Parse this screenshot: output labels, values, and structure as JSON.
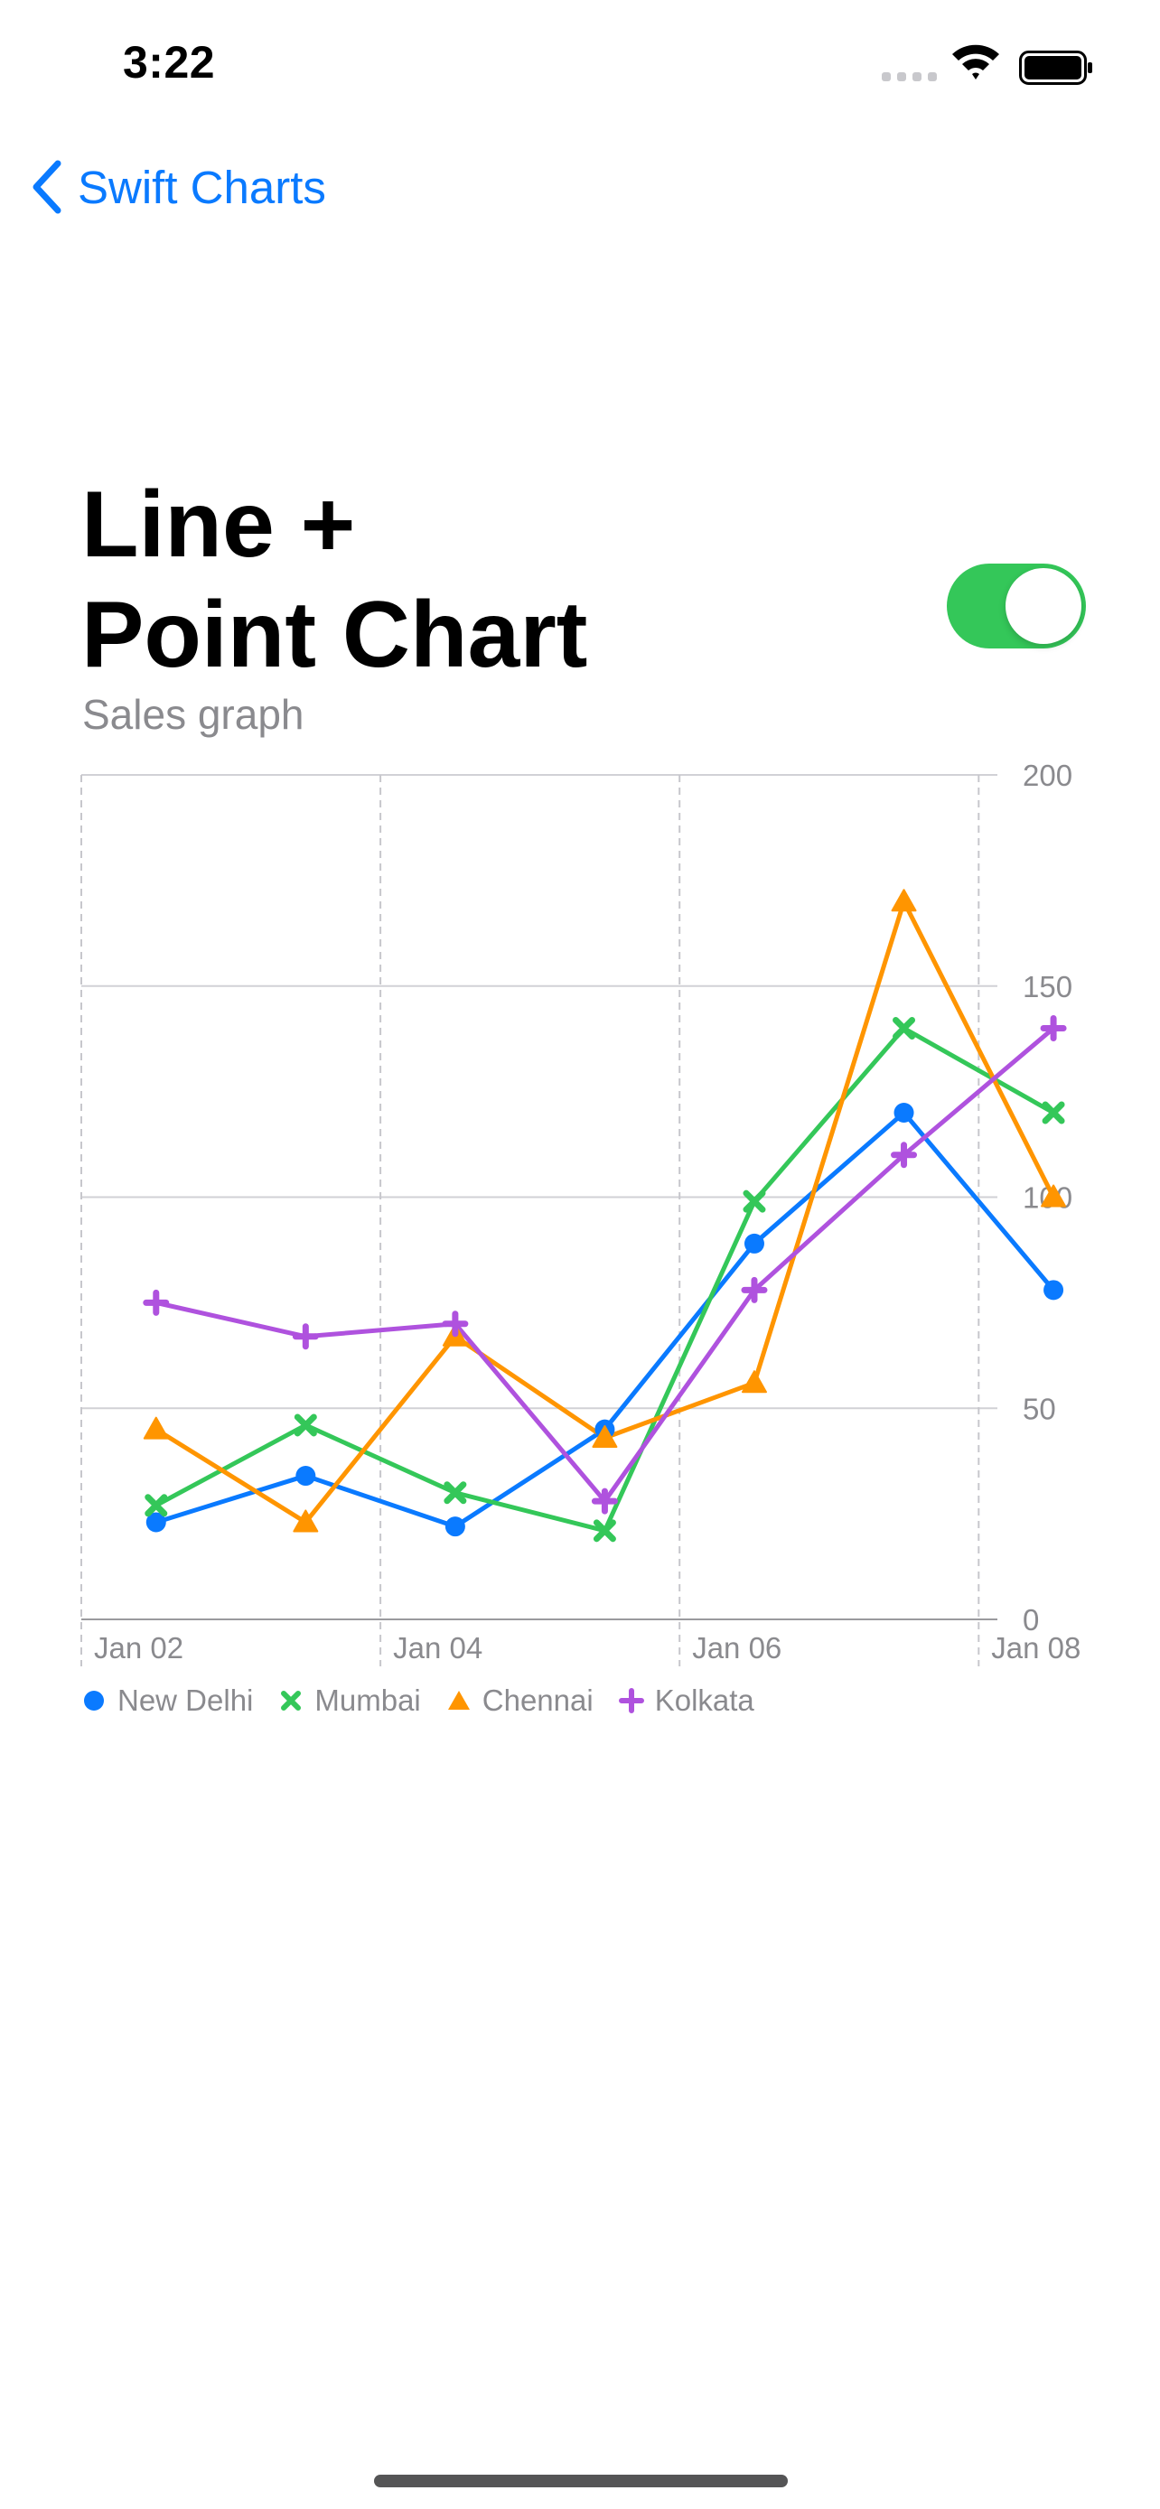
{
  "status_bar": {
    "time": "3:22"
  },
  "nav": {
    "back_label": "Swift Charts"
  },
  "header": {
    "title_line1": "Line +",
    "title_line2": "Point Chart",
    "subtitle": "Sales graph",
    "toggle_on": true
  },
  "colors": {
    "accent": "#0a7aff",
    "toggle": "#34c759"
  },
  "chart_data": {
    "type": "line",
    "title": "Sales graph",
    "x": [
      "Jan 02",
      "Jan 03",
      "Jan 04",
      "Jan 05",
      "Jan 06",
      "Jan 07",
      "Jan 08"
    ],
    "x_tick_labels": [
      "Jan 02",
      "Jan 04",
      "Jan 06",
      "Jan 08"
    ],
    "y_ticks": [
      0,
      50,
      100,
      150,
      200
    ],
    "ylim": [
      0,
      200
    ],
    "grid": true,
    "legend_position": "bottom-left",
    "series": [
      {
        "name": "New Delhi",
        "color": "#0a7aff",
        "marker": "circle",
        "values": [
          23,
          34,
          22,
          45,
          89,
          120,
          78
        ]
      },
      {
        "name": "Mumbai",
        "color": "#34c759",
        "marker": "cross",
        "values": [
          27,
          46,
          30,
          21,
          99,
          140,
          120
        ]
      },
      {
        "name": "Chennai",
        "color": "#ff9500",
        "marker": "triangle",
        "values": [
          45,
          23,
          67,
          43,
          56,
          170,
          100
        ]
      },
      {
        "name": "Kolkata",
        "color": "#af52de",
        "marker": "plus",
        "values": [
          75,
          67,
          70,
          28,
          78,
          110,
          140
        ]
      }
    ]
  }
}
